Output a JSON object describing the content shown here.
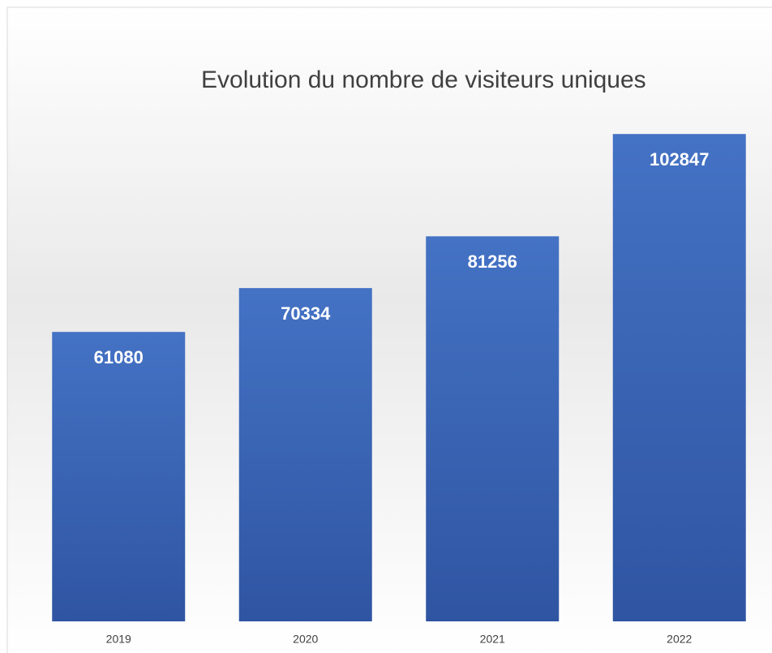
{
  "chart_data": {
    "type": "bar",
    "title": "Evolution du nombre de visiteurs uniques",
    "categories": [
      "2019",
      "2020",
      "2021",
      "2022"
    ],
    "values": [
      61080,
      70334,
      81256,
      102847
    ],
    "color": "#4472c4",
    "ylim": [
      0,
      120000
    ]
  }
}
